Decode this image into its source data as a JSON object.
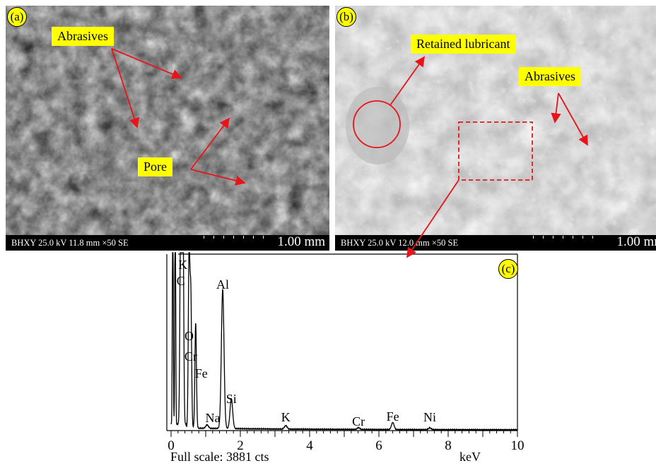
{
  "panel_a": {
    "badge": "(a)",
    "scale_info": "BHXY 25.0 kV 11.8 mm ×50 SE",
    "scale_length": "1.00 mm",
    "labels": {
      "abrasives": "Abrasives",
      "pore": "Pore"
    }
  },
  "panel_b": {
    "badge": "(b)",
    "scale_info": "BHXY 25.0 kV 12.0 mm ×50 SE",
    "scale_length": "1.00 mm",
    "labels": {
      "retained_lubricant": "Retained lubricant",
      "abrasives": "Abrasives"
    }
  },
  "panel_c": {
    "badge": "(c)",
    "full_scale": "Full scale: 3881 cts",
    "unit": "keV"
  },
  "colors": {
    "label_bg": "#ffff00",
    "arrow": "#e8141a",
    "spectrum": "#000000"
  },
  "chart_data": {
    "type": "line",
    "x_unit": "keV",
    "xlim": [
      0,
      10
    ],
    "x_ticks": [
      0,
      2,
      4,
      6,
      8,
      10
    ],
    "peaks": [
      {
        "label": "C",
        "x": 0.28,
        "y": 1.4
      },
      {
        "label": "K",
        "x": 0.34,
        "y": 1.4
      },
      {
        "label": "O",
        "x": 0.52,
        "y": 1.0
      },
      {
        "label": "Cr",
        "x": 0.57,
        "y": 0.75
      },
      {
        "label": "Fe",
        "x": 0.71,
        "y": 0.6
      },
      {
        "label": "Na",
        "x": 1.04,
        "y": 0.02
      },
      {
        "label": "Al",
        "x": 1.49,
        "y": 0.79
      },
      {
        "label": "Si",
        "x": 1.74,
        "y": 0.17
      },
      {
        "label": "K",
        "x": 3.31,
        "y": 0.02
      },
      {
        "label": "Cr",
        "x": 5.41,
        "y": 0.01
      },
      {
        "label": "Fe",
        "x": 6.4,
        "y": 0.04
      },
      {
        "label": "Ni",
        "x": 7.47,
        "y": 0.01
      }
    ]
  }
}
